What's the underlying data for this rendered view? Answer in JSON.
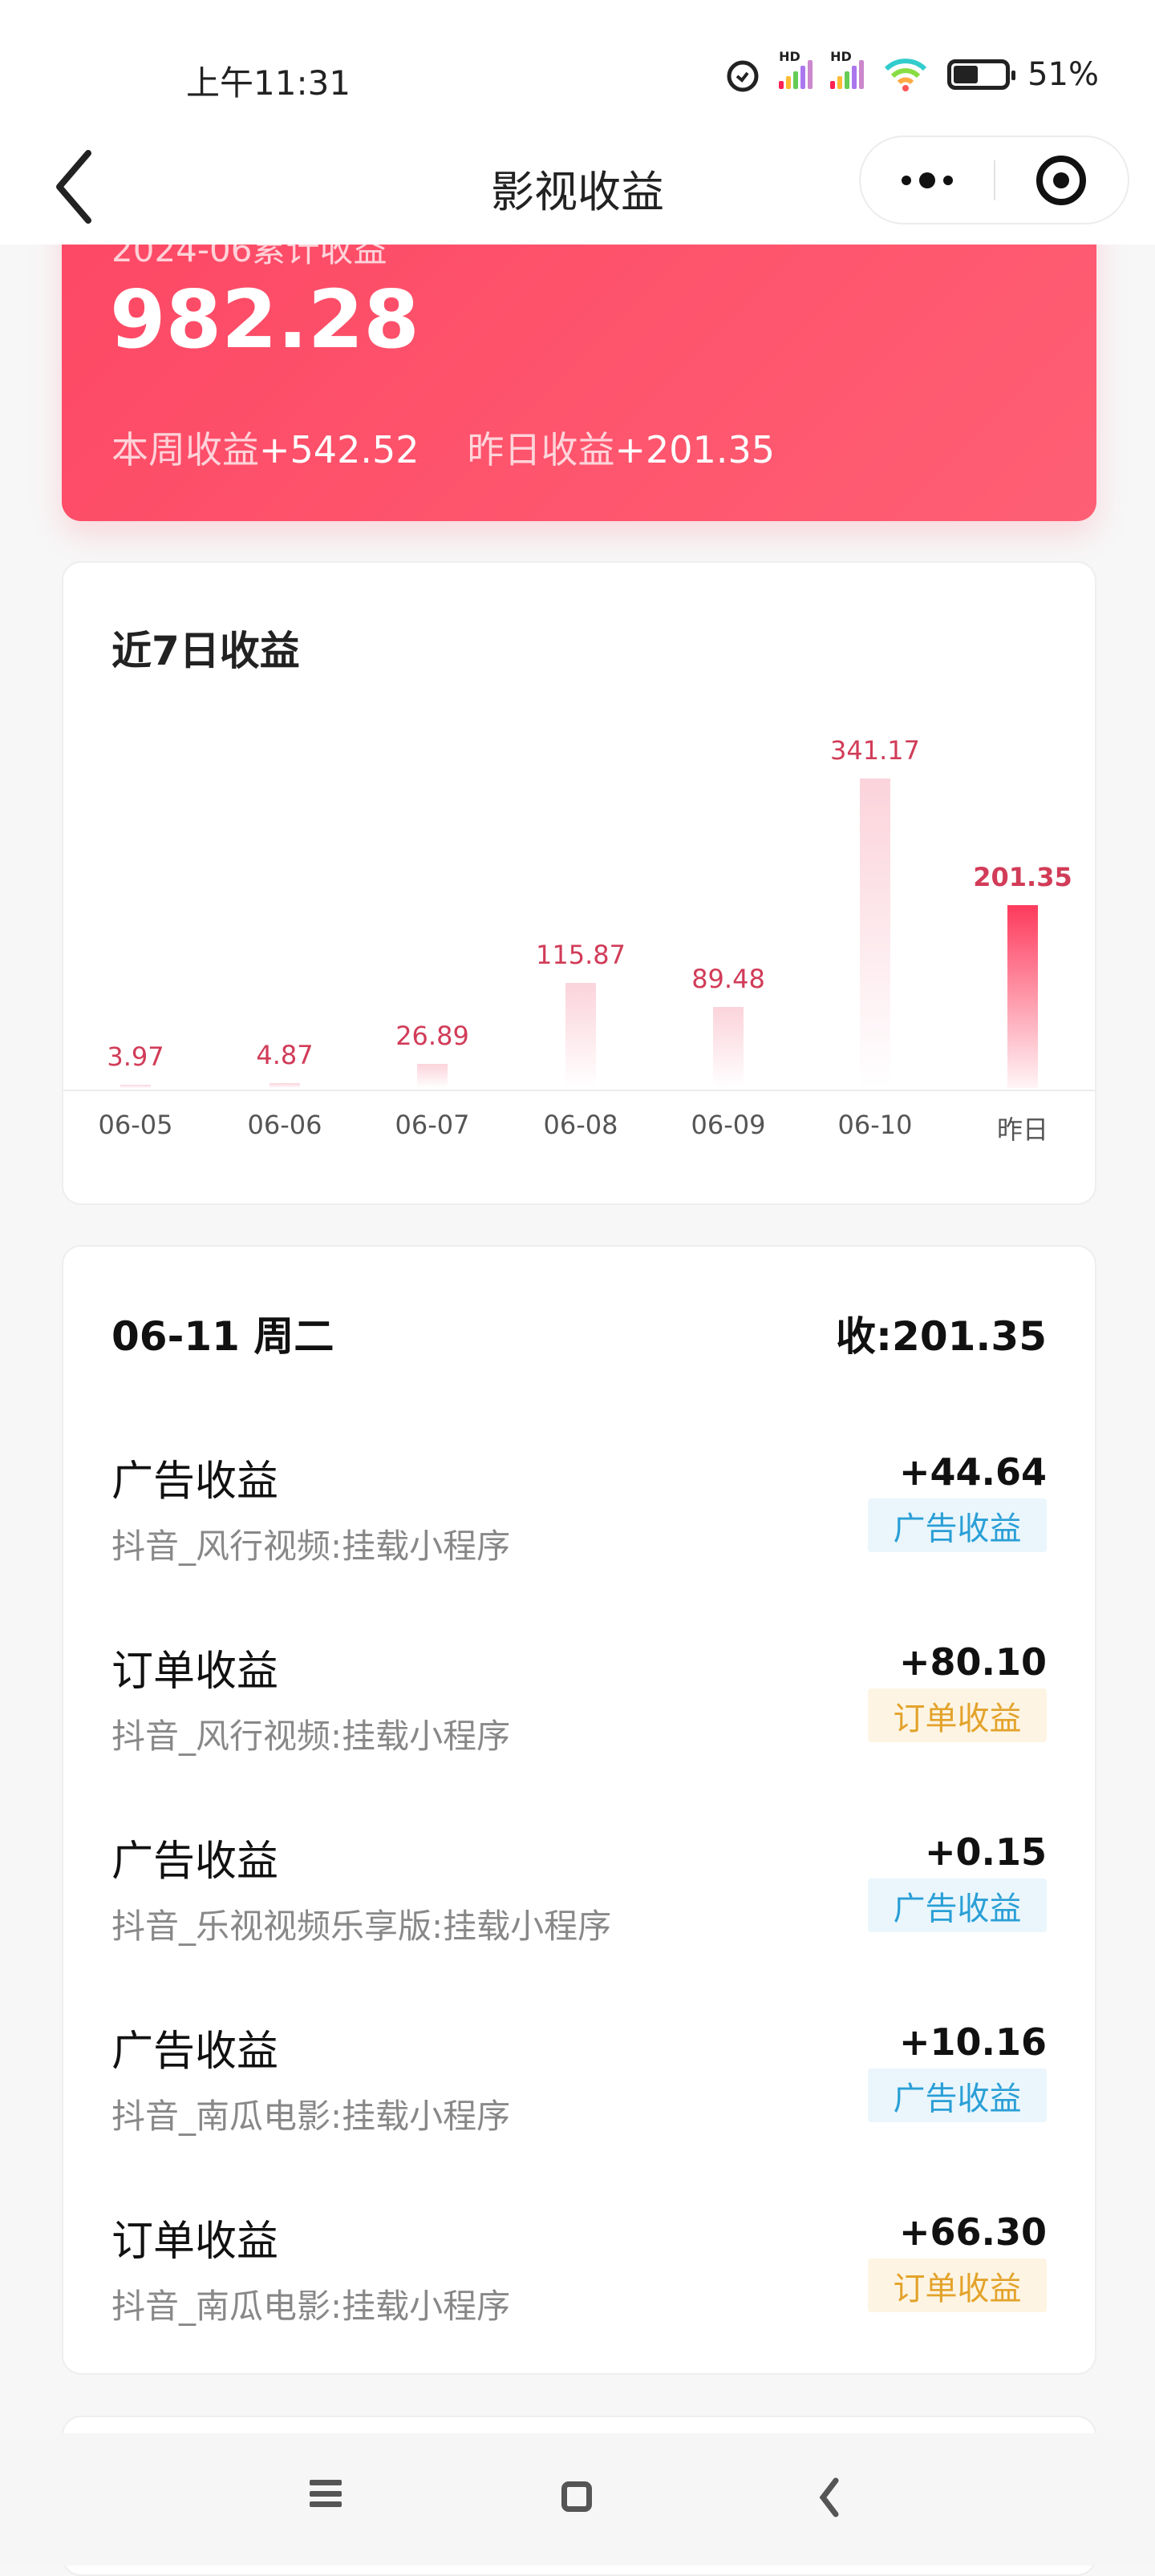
{
  "status_bar": {
    "time": "上午11:31",
    "battery": "51%",
    "battery_level": 0.51
  },
  "nav": {
    "title": "影视收益"
  },
  "summary": {
    "label": "2024-06累计收益",
    "total": "982.28",
    "week_label": "本周收益",
    "week_value": "+542.52",
    "yesterday_label": "昨日收益",
    "yesterday_value": "+201.35",
    "accent": "#fd4764"
  },
  "chart_data": {
    "type": "bar",
    "title": "近7日收益",
    "categories": [
      "06-05",
      "06-06",
      "06-07",
      "06-08",
      "06-09",
      "06-10",
      "昨日"
    ],
    "values": [
      3.97,
      4.87,
      26.89,
      115.87,
      89.48,
      341.17,
      201.35
    ],
    "value_labels": [
      "3.97",
      "4.87",
      "26.89",
      "115.87",
      "89.48",
      "341.17",
      "201.35"
    ],
    "highlight_index": 6,
    "grid": false,
    "colors": {
      "highlight": "#fd3a5c",
      "normal": "#fbd3db",
      "label": "#d13c58"
    }
  },
  "detail": {
    "date": "06-11 周二",
    "total": "收:201.35",
    "items": [
      {
        "title": "广告收益",
        "amount": "+44.64",
        "source": "抖音_风行视频:挂载小程序",
        "tag": "广告收益",
        "tag_type": "ad"
      },
      {
        "title": "订单收益",
        "amount": "+80.10",
        "source": "抖音_风行视频:挂载小程序",
        "tag": "订单收益",
        "tag_type": "order"
      },
      {
        "title": "广告收益",
        "amount": "+0.15",
        "source": "抖音_乐视视频乐享版:挂载小程序",
        "tag": "广告收益",
        "tag_type": "ad"
      },
      {
        "title": "广告收益",
        "amount": "+10.16",
        "source": "抖音_南瓜电影:挂载小程序",
        "tag": "广告收益",
        "tag_type": "ad"
      },
      {
        "title": "订单收益",
        "amount": "+66.30",
        "source": "抖音_南瓜电影:挂载小程序",
        "tag": "订单收益",
        "tag_type": "order"
      }
    ],
    "tag_colors": {
      "ad": {
        "bg": "#eaf6fc",
        "fg": "#2a9fd6"
      },
      "order": {
        "bg": "#fdf4e3",
        "fg": "#e3a32b"
      }
    }
  }
}
